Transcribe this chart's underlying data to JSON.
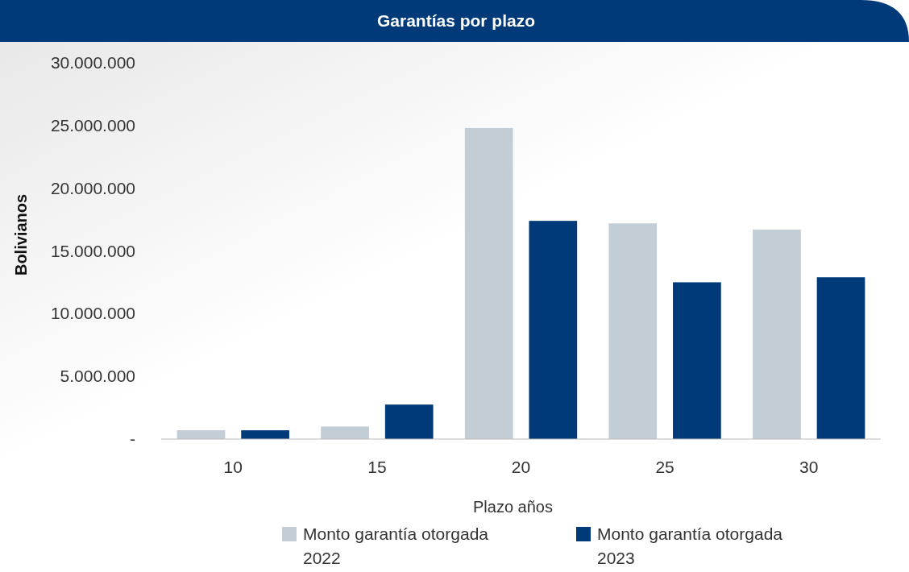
{
  "chart_data": {
    "type": "bar",
    "title": "Garantías por plazo",
    "xlabel": "Plazo años",
    "ylabel": "Bolivianos",
    "categories": [
      "10",
      "15",
      "20",
      "25",
      "30"
    ],
    "series": [
      {
        "name": "Monto garantía otorgada 2022",
        "color": "#c3cdd6",
        "values": [
          700000,
          1000000,
          24800000,
          17200000,
          16700000
        ]
      },
      {
        "name": "Monto garantía otorgada 2023",
        "color": "#003a78",
        "values": [
          700000,
          2750000,
          17400000,
          12500000,
          12900000
        ]
      }
    ],
    "ylim": [
      0,
      30000000
    ],
    "yticks": [
      {
        "value": 0,
        "label": "-"
      },
      {
        "value": 5000000,
        "label": "5.000.000"
      },
      {
        "value": 10000000,
        "label": "10.000.000"
      },
      {
        "value": 15000000,
        "label": "15.000.000"
      },
      {
        "value": 20000000,
        "label": "20.000.000"
      },
      {
        "value": 25000000,
        "label": "25.000.000"
      },
      {
        "value": 30000000,
        "label": "30.000.000"
      }
    ],
    "grid": false,
    "legend": "bottom"
  }
}
